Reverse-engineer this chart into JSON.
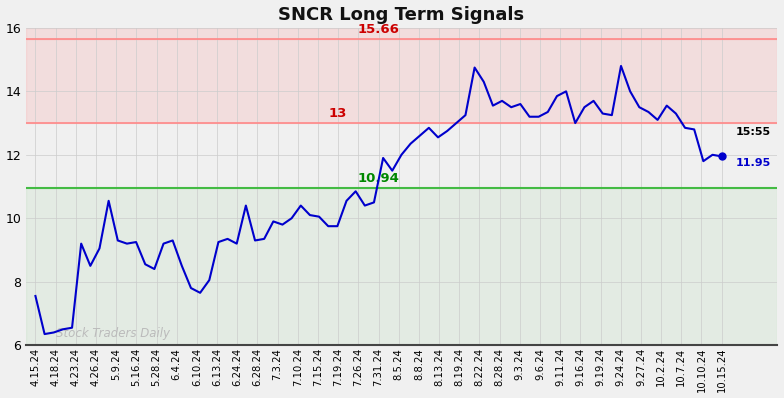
{
  "title": "SNCR Long Term Signals",
  "hline_upper": 15.66,
  "hline_mid": 13.0,
  "hline_lower": 10.94,
  "line_color": "#0000cc",
  "watermark": "Stock Traders Daily",
  "watermark_color": "#bbbbbb",
  "last_label": "15:55",
  "last_value": "11.95",
  "last_label_color": "#000000",
  "last_value_color": "#0000cc",
  "ylim": [
    6,
    16
  ],
  "yticks": [
    6,
    8,
    10,
    12,
    14,
    16
  ],
  "x_labels": [
    "4.15.24",
    "4.18.24",
    "4.23.24",
    "4.26.24",
    "5.9.24",
    "5.16.24",
    "5.28.24",
    "6.4.24",
    "6.10.24",
    "6.13.24",
    "6.24.24",
    "6.28.24",
    "7.3.24",
    "7.10.24",
    "7.15.24",
    "7.19.24",
    "7.26.24",
    "7.31.24",
    "8.5.24",
    "8.8.24",
    "8.13.24",
    "8.19.24",
    "8.22.24",
    "8.28.24",
    "9.3.24",
    "9.6.24",
    "9.11.24",
    "9.16.24",
    "9.19.24",
    "9.24.24",
    "9.27.24",
    "10.2.24",
    "10.7.24",
    "10.10.24",
    "10.15.24"
  ],
  "y_values": [
    7.55,
    6.35,
    6.4,
    6.5,
    6.55,
    9.2,
    8.5,
    9.05,
    10.55,
    9.3,
    9.2,
    9.25,
    8.55,
    8.4,
    9.2,
    9.3,
    8.5,
    7.8,
    7.65,
    8.05,
    9.25,
    9.35,
    9.2,
    10.4,
    9.3,
    9.35,
    9.9,
    9.8,
    10.0,
    10.4,
    10.1,
    10.05,
    9.75,
    9.75,
    10.55,
    10.85,
    10.4,
    10.5,
    11.9,
    11.5,
    12.0,
    12.35,
    12.6,
    12.85,
    12.55,
    12.75,
    13.0,
    13.25,
    14.75,
    14.3,
    13.55,
    13.7,
    13.5,
    13.6,
    13.2,
    13.2,
    13.35,
    13.85,
    14.0,
    13.0,
    13.5,
    13.7,
    13.3,
    13.25,
    14.8,
    14.0,
    13.5,
    13.35,
    13.1,
    13.55,
    13.3,
    12.85,
    12.8,
    11.8,
    12.0,
    11.95
  ]
}
